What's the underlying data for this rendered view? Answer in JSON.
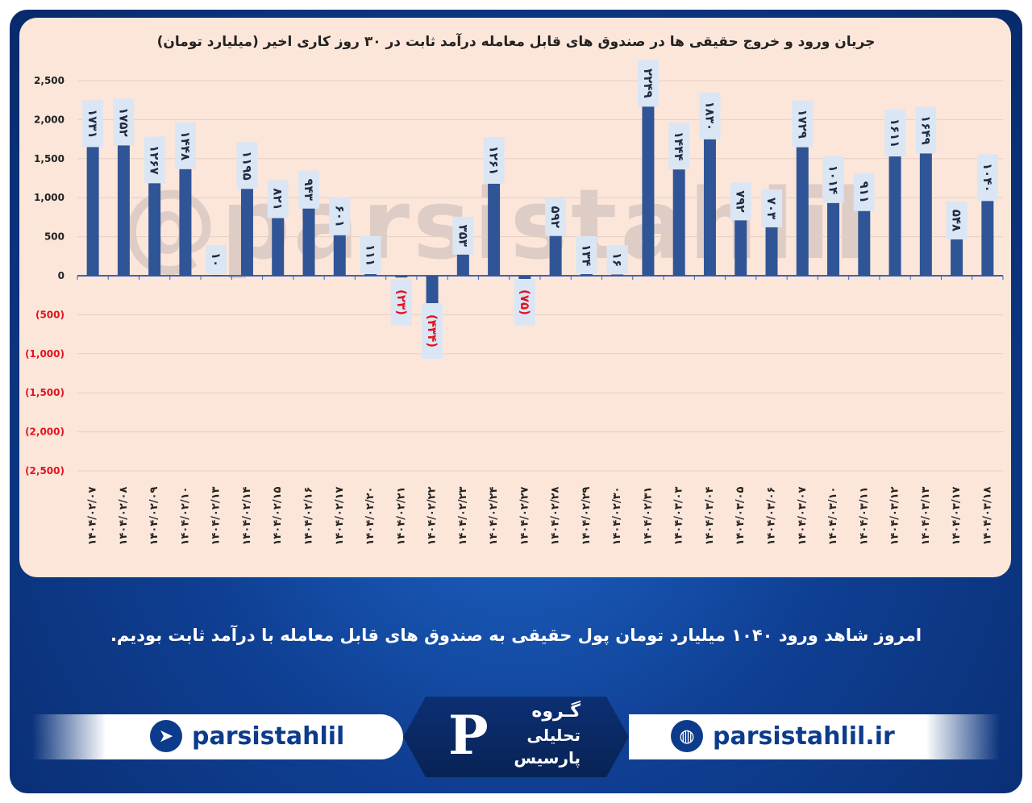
{
  "chart_data": {
    "type": "bar",
    "title": "جریان ورود و خروج حقیقی ها در صندوق های قابل معامله درآمد ثابت در ۳۰ روز کاری اخیر (میلیارد تومان)",
    "categories": [
      "۱۴۰۴/۰۲/۰۷",
      "۱۴۰۴/۰۲/۰۸",
      "۱۴۰۴/۰۲/۰۹",
      "۱۴۰۴/۰۲/۱۰",
      "۱۴۰۴/۰۲/۱۳",
      "۱۴۰۴/۰۲/۱۴",
      "۱۴۰۴/۰۲/۱۵",
      "۱۴۰۴/۰۲/۱۶",
      "۱۴۰۴/۰۲/۱۷",
      "۱۴۰۴/۰۲/۲۰",
      "۱۴۰۴/۰۲/۲۱",
      "۱۴۰۴/۰۲/۲۲",
      "۱۴۰۴/۰۲/۲۳",
      "۱۴۰۴/۰۲/۲۴",
      "۱۴۰۴/۰۲/۲۷",
      "۱۴۰۴/۰۲/۲۸",
      "۱۴۰۴/۰۲/۲۹",
      "۱۴۰۴/۰۲/۳۰",
      "۱۴۰۴/۰۲/۳۱",
      "۱۴۰۴/۰۳/۰۳",
      "۱۴۰۴/۰۳/۰۴",
      "۱۴۰۴/۰۳/۰۵",
      "۱۴۰۴/۰۳/۰۶",
      "۱۴۰۴/۰۳/۰۷",
      "۱۴۰۴/۰۳/۱۰",
      "۱۴۰۴/۰۳/۱۱",
      "۱۴۰۴/۰۳/۱۲",
      "۱۴۰۴/۰۳/۱۳",
      "۱۴۰۴/۰۳/۱۷",
      "۱۴۰۴/۰۳/۱۸"
    ],
    "values": [
      1731,
      1752,
      1267,
      1448,
      10,
      1195,
      821,
      943,
      601,
      111,
      -23,
      -434,
      353,
      1261,
      -75,
      592,
      134,
      16,
      2249,
      1444,
      1830,
      792,
      703,
      1729,
      1014,
      911,
      1611,
      1649,
      548,
      1040
    ],
    "data_labels": [
      "۱۷۳۱",
      "۱۷۵۲",
      "۱۲۶۷",
      "۱۴۴۸",
      "۱۰",
      "۱۱۹۵",
      "۸۲۱",
      "۹۴۳",
      "۶۰۱",
      "۱۱۱",
      "(۲۳)",
      "(۴۳۴)",
      "۳۵۳",
      "۱۲۶۱",
      "(۷۵)",
      "۵۹۲",
      "۱۳۴",
      "۱۶",
      "۲۲۴۹",
      "۱۴۴۴",
      "۱۸۳۰",
      "۷۹۲",
      "۷۰۳",
      "۱۷۲۹",
      "۱۰۱۴",
      "۹۱۱",
      "۱۶۱۱",
      "۱۶۴۹",
      "۵۴۸",
      "۱۰۴۰"
    ],
    "y_ticks": [
      2500,
      2000,
      1500,
      1000,
      500,
      0,
      -500,
      -1000,
      -1500,
      -2000,
      -2500
    ],
    "y_tick_labels": [
      "2,500",
      "2,000",
      "1,500",
      "1,000",
      "500",
      "0",
      "(500)",
      "(1,000)",
      "(1,500)",
      "(2,000)",
      "(2,500)"
    ],
    "ylim": [
      -2500,
      2500
    ],
    "grid": true,
    "colors": {
      "bar": "#2f5597",
      "positive_label": "#1f2a44",
      "negative_label": "#e0141e",
      "label_box": "#dbe6f4"
    }
  },
  "watermark": "@parsistahlil",
  "caption": "امروز شاهد ورود ۱۰۴۰ میلیارد تومان پول حقیقی به صندوق های قابل معامله با درآمد ثابت بودیم.",
  "footer": {
    "telegram_handle": "parsistahlil",
    "telegram_icon": "telegram-icon",
    "website": "parsistahlil.ir",
    "web_icon": "globe-icon",
    "logo_line1": "گـروه",
    "logo_line2": "تحلیلی",
    "logo_line3": "پارسیس"
  }
}
